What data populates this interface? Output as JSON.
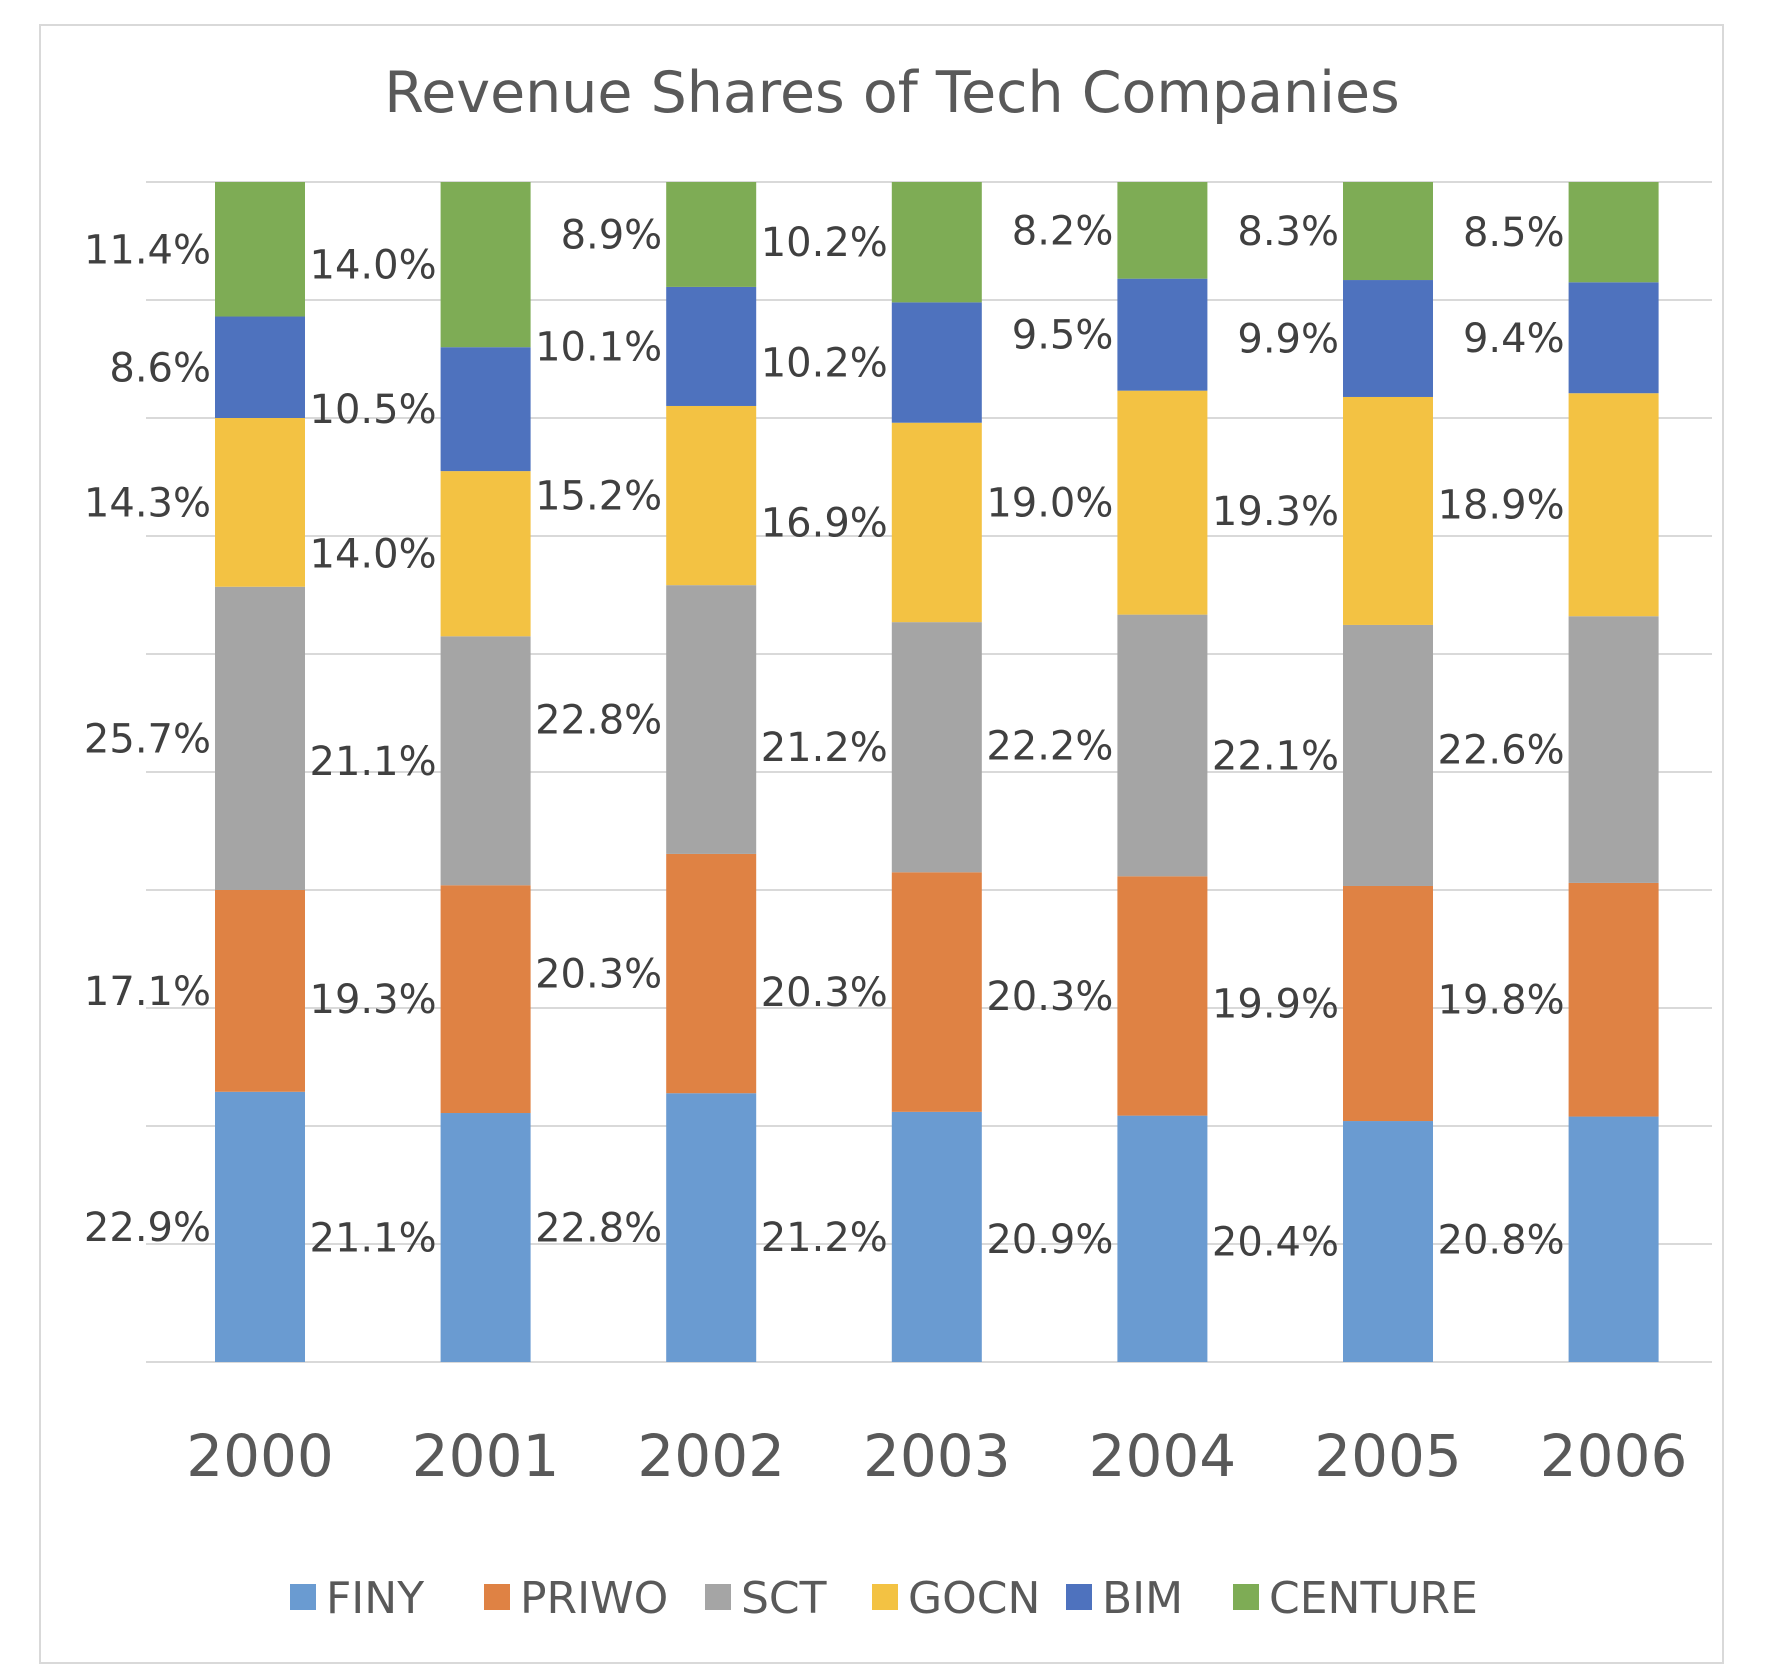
{
  "chart_data": {
    "type": "bar",
    "stacked": true,
    "percent_stacked": true,
    "title": "Revenue Shares of Tech Companies",
    "xlabel": "",
    "ylabel": "",
    "ylim": [
      0,
      100
    ],
    "grid": true,
    "legend_position": "bottom",
    "categories": [
      "2000",
      "2001",
      "2002",
      "2003",
      "2004",
      "2005",
      "2006"
    ],
    "series": [
      {
        "name": "FINY",
        "color": "#6a9bd1",
        "values": [
          22.9,
          21.1,
          22.8,
          21.2,
          20.9,
          20.4,
          20.8
        ]
      },
      {
        "name": "PRIWO",
        "color": "#df8244",
        "values": [
          17.1,
          19.3,
          20.3,
          20.3,
          20.3,
          19.9,
          19.8
        ]
      },
      {
        "name": "SCT",
        "color": "#a5a5a5",
        "values": [
          25.7,
          21.1,
          22.8,
          21.2,
          22.2,
          22.1,
          22.6
        ]
      },
      {
        "name": "GOCN",
        "color": "#f3c243",
        "values": [
          14.3,
          14.0,
          15.2,
          16.9,
          19.0,
          19.3,
          18.9
        ]
      },
      {
        "name": "BIM",
        "color": "#4e72be",
        "values": [
          8.6,
          10.5,
          10.1,
          10.2,
          9.5,
          9.9,
          9.4
        ]
      },
      {
        "name": "CENTURE",
        "color": "#7eac55",
        "values": [
          11.4,
          14.0,
          8.9,
          10.2,
          8.2,
          8.3,
          8.5
        ]
      }
    ],
    "data_label_format": "{v}%"
  }
}
